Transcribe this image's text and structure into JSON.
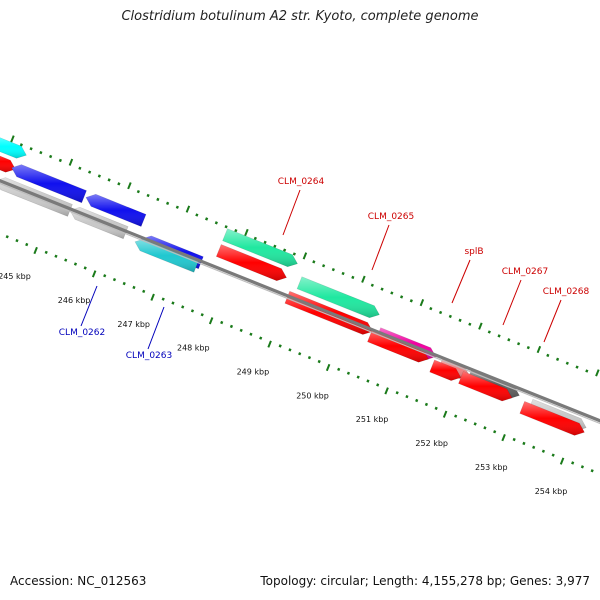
{
  "title": "Clostridium botulinum A2 str. Kyoto, complete genome",
  "footer": {
    "accession": "Accession: NC_012563",
    "topology": "Topology: circular; Length: 4,155,278 bp; Genes: 3,977"
  },
  "colors": {
    "backbone": "#7a7a7a",
    "tick": "#1a7a1a",
    "cds_forward": "#ff0000",
    "label_red": "#cc0000",
    "label_blue": "#0000bb"
  },
  "ticks": [
    {
      "label": "245 kbp"
    },
    {
      "label": "246 kbp"
    },
    {
      "label": "247 kbp"
    },
    {
      "label": "248 kbp"
    },
    {
      "label": "249 kbp"
    },
    {
      "label": "250 kbp"
    },
    {
      "label": "251 kbp"
    },
    {
      "label": "252 kbp"
    },
    {
      "label": "253 kbp"
    },
    {
      "label": "254 kbp"
    }
  ],
  "gene_labels": [
    {
      "name": "CLM_0264",
      "color": "#cc0000"
    },
    {
      "name": "CLM_0265",
      "color": "#cc0000"
    },
    {
      "name": "splB",
      "color": "#cc0000"
    },
    {
      "name": "CLM_0267",
      "color": "#cc0000"
    },
    {
      "name": "CLM_0268",
      "color": "#cc0000"
    },
    {
      "name": "CLM_0262",
      "color": "#0000bb"
    },
    {
      "name": "CLM_0263",
      "color": "#0000bb"
    }
  ]
}
